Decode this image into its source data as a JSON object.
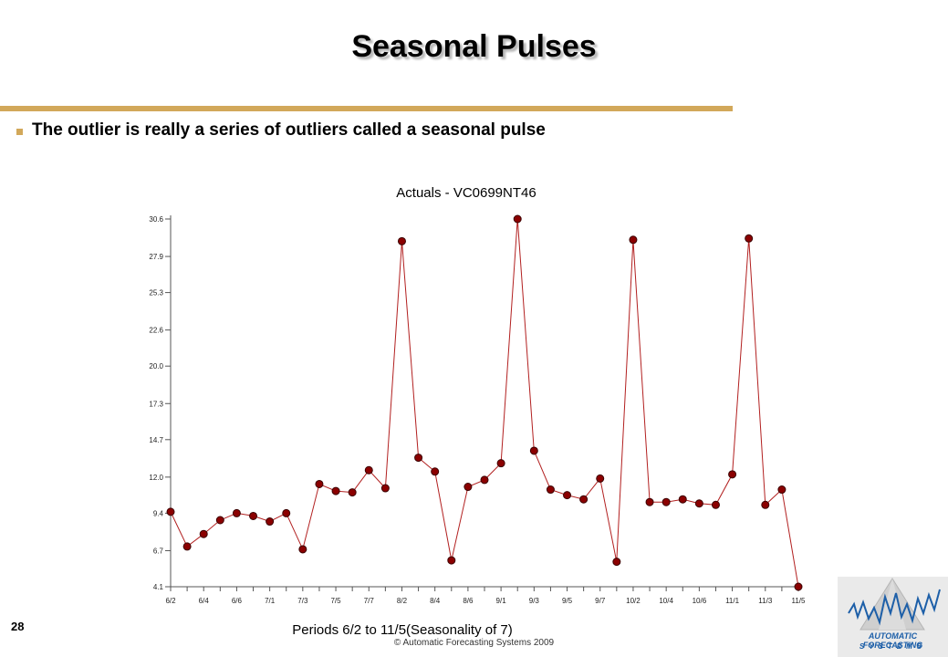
{
  "slide": {
    "title": "Seasonal Pulses",
    "bullet": "The outlier is really a series of outliers called a seasonal pulse",
    "page_number": "28",
    "copyright": "© Automatic Forecasting Systems 2009"
  },
  "logo": {
    "line1": "AUTOMATIC FORECASTING",
    "line2": "SYSTEMS"
  },
  "colors": {
    "accent_rule": "#d2a85a",
    "line": "#b22020",
    "marker": "#8b0000",
    "axis": "#555555"
  },
  "chart_data": {
    "type": "line",
    "title": "Actuals - VC0699NT46",
    "xlabel": "Periods 6/2 to 11/5(Seasonality of 7)",
    "ylabel": "",
    "ylim": [
      4.1,
      30.6
    ],
    "y_ticks": [
      "30.6",
      "27.9",
      "25.3",
      "22.6",
      "20.0",
      "17.3",
      "14.7",
      "12.0",
      "9.4",
      "6.7",
      "4.1"
    ],
    "x_ticks": [
      "6/2",
      "6/4",
      "6/6",
      "7/1",
      "7/3",
      "7/5",
      "7/7",
      "8/2",
      "8/4",
      "8/6",
      "9/1",
      "9/3",
      "9/5",
      "9/7",
      "10/2",
      "10/4",
      "10/6",
      "11/1",
      "11/3",
      "11/5"
    ],
    "series": [
      {
        "values": [
          9.5,
          7.0,
          7.9,
          8.9,
          9.4,
          9.2,
          8.8,
          9.4,
          6.8,
          11.5,
          11.0,
          10.9,
          12.5,
          11.2,
          29.0,
          13.4,
          12.4,
          6.0,
          11.3,
          11.8,
          13.0,
          30.6,
          13.9,
          11.1,
          10.7,
          10.4,
          11.9,
          5.9,
          29.1,
          10.2,
          10.2,
          10.4,
          10.1,
          10.0,
          12.2,
          29.2,
          10.0,
          11.1,
          4.1
        ]
      }
    ]
  }
}
